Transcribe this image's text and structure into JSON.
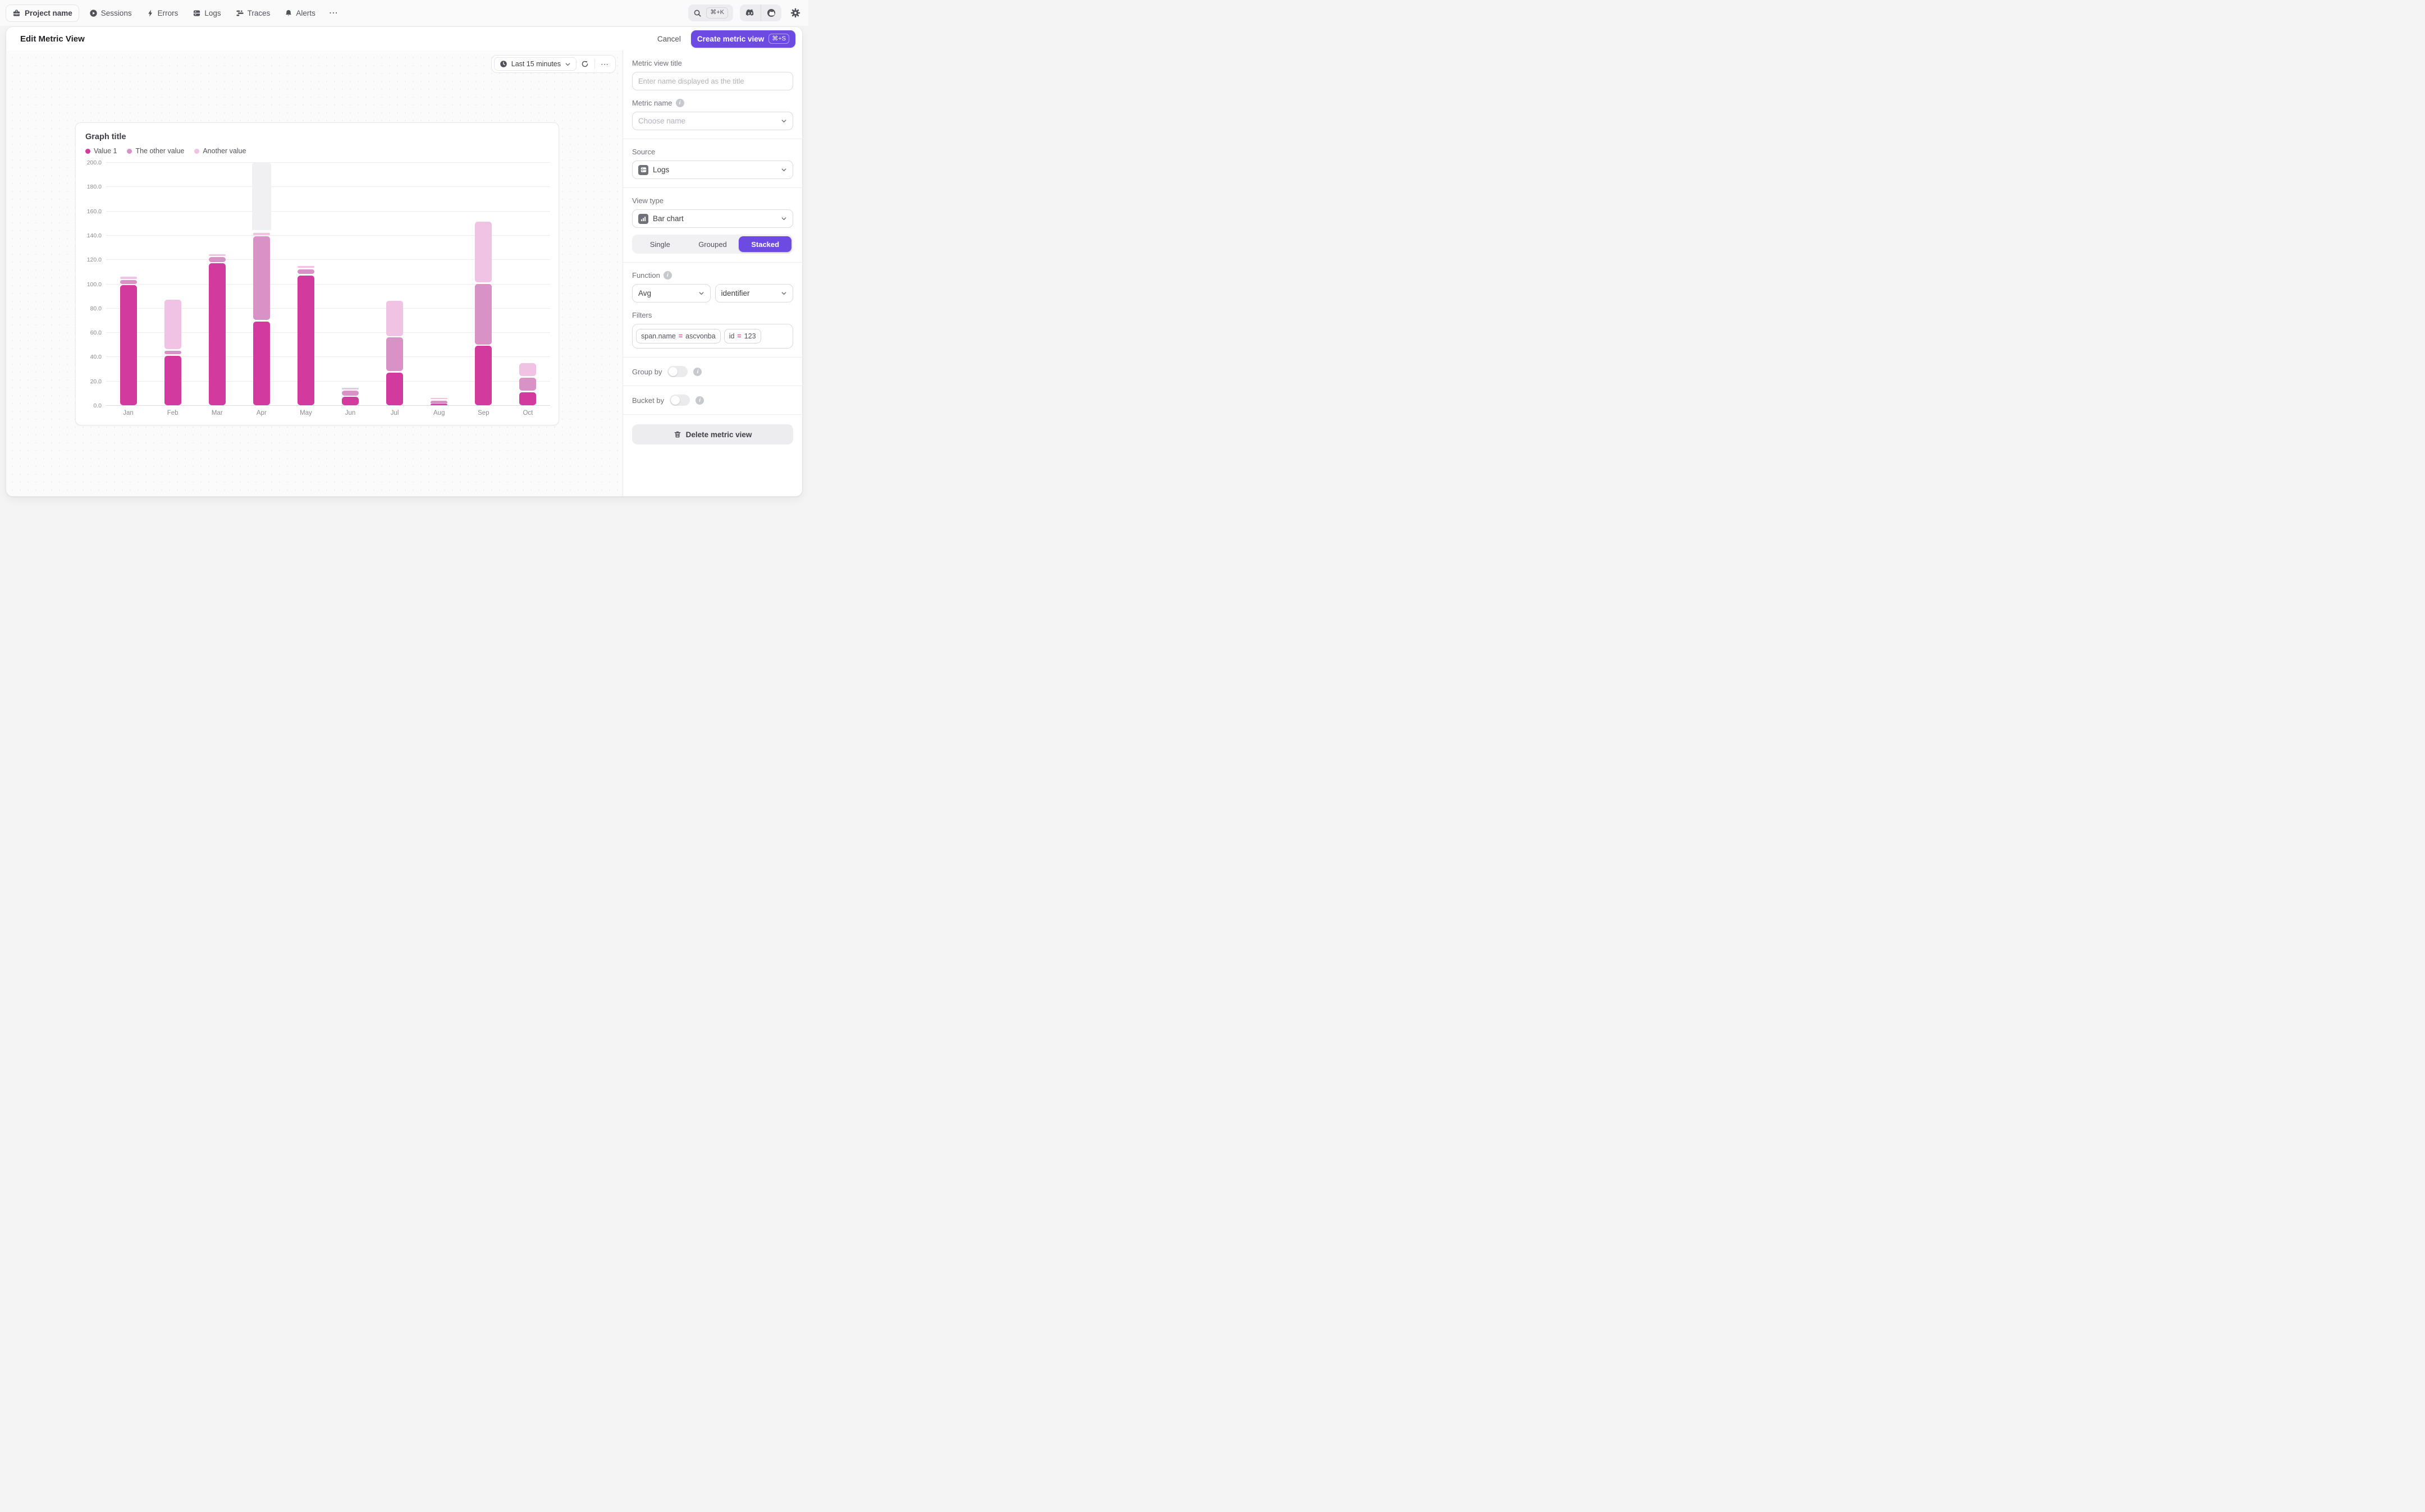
{
  "topnav": {
    "project_label": "Project name",
    "items": [
      {
        "label": "Sessions",
        "icon": "play-circle-icon"
      },
      {
        "label": "Errors",
        "icon": "lightning-icon"
      },
      {
        "label": "Logs",
        "icon": "logs-icon"
      },
      {
        "label": "Traces",
        "icon": "traces-icon"
      },
      {
        "label": "Alerts",
        "icon": "bell-icon"
      }
    ],
    "overflow": "⋯",
    "search_shortcut": "⌘+K"
  },
  "header": {
    "title": "Edit Metric View",
    "cancel_label": "Cancel",
    "create_label": "Create metric view",
    "create_shortcut": "⌘+S"
  },
  "canvas": {
    "time_range_label": "Last 15 minutes",
    "time_options": "⋯"
  },
  "chart_data": {
    "type": "bar",
    "stacked": true,
    "title": "Graph title",
    "categories": [
      "Jan",
      "Feb",
      "Mar",
      "Apr",
      "May",
      "Jun",
      "Jul",
      "Aug",
      "Sep",
      "Oct"
    ],
    "series": [
      {
        "name": "Value 1",
        "color": "#d23a9e",
        "values": [
          100,
          42,
          118,
          70,
          108,
          8,
          28,
          1,
          50,
          12
        ]
      },
      {
        "name": "The other value",
        "color": "#d992c6",
        "values": [
          4,
          4,
          5,
          70,
          5,
          5,
          29,
          4,
          51,
          12
        ]
      },
      {
        "name": "Another value",
        "color": "#f0c2e4",
        "values": [
          3,
          42,
          2.5,
          3,
          2.5,
          2.5,
          30,
          2,
          51,
          12
        ]
      }
    ],
    "ylim": [
      0,
      200
    ],
    "ytick_step": 20,
    "grid": true,
    "legend_position": "top",
    "highlighted_category": "Apr",
    "highlight_color": "#f0f0f2"
  },
  "sidebar": {
    "metric_view_title": {
      "label": "Metric view title",
      "placeholder": "Enter name displayed as the title"
    },
    "metric_name": {
      "label": "Metric name",
      "placeholder": "Choose name"
    },
    "source": {
      "label": "Source",
      "value": "Logs"
    },
    "view_type": {
      "label": "View type",
      "value": "Bar chart",
      "modes": [
        "Single",
        "Grouped",
        "Stacked"
      ],
      "active_mode": "Stacked"
    },
    "function": {
      "label": "Function",
      "value": "Avg",
      "argument": "identifier"
    },
    "filters": {
      "label": "Filters",
      "chips": [
        {
          "field": "span.name",
          "op": "=",
          "value": "ascvonba"
        },
        {
          "field": "id",
          "op": "=",
          "value": "123"
        }
      ]
    },
    "group_by": {
      "label": "Group by",
      "enabled": false
    },
    "bucket_by": {
      "label": "Bucket by",
      "enabled": false
    },
    "delete_label": "Delete metric view"
  },
  "colors": {
    "accent": "#6d4ae2",
    "filter_op": "#ec4899"
  }
}
